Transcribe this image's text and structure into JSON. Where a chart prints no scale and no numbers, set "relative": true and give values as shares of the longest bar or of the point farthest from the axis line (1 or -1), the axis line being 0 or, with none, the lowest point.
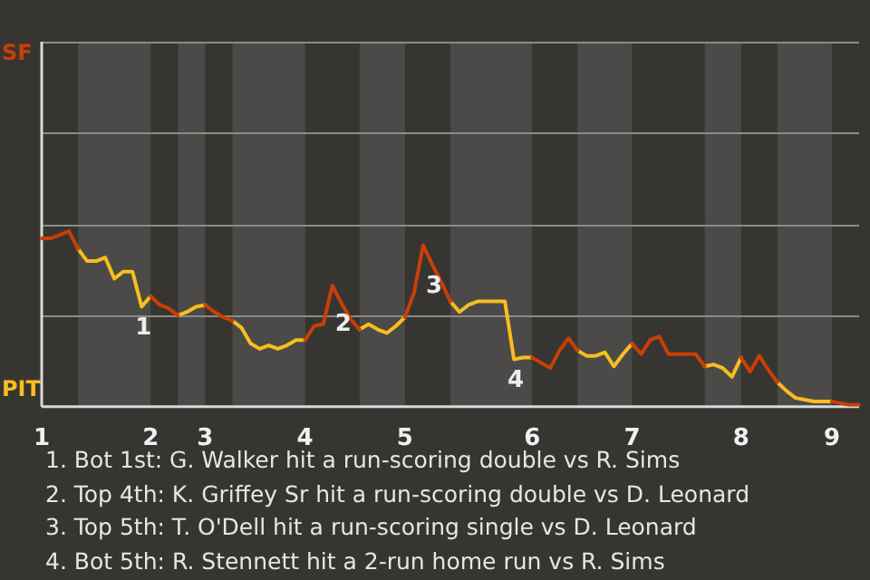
{
  "chart_data": {
    "type": "line",
    "relative": true,
    "categories": [
      "1",
      null,
      null,
      null,
      null,
      null,
      null,
      null,
      null,
      null,
      null,
      null,
      "2",
      null,
      null,
      null,
      null,
      null,
      "3",
      null,
      null,
      null,
      null,
      null,
      null,
      null,
      null,
      null,
      null,
      "4",
      null,
      null,
      null,
      null,
      null,
      null,
      null,
      null,
      null,
      null,
      "5",
      null,
      null,
      null,
      null,
      null,
      null,
      null,
      null,
      null,
      null,
      null,
      null,
      null,
      "6",
      null,
      null,
      null,
      null,
      null,
      null,
      null,
      null,
      null,
      null,
      "7",
      null,
      null,
      null,
      null,
      null,
      null,
      null,
      null,
      null,
      null,
      null,
      "8",
      null,
      null,
      null,
      null,
      null,
      null,
      null,
      null,
      null,
      "9",
      null,
      null,
      null
    ],
    "marker": "none",
    "line_style": "solid",
    "ref_lines": [
      {
        "axis": "y",
        "value": 0.52,
        "color": "#8d8b88"
      },
      {
        "axis": "y",
        "value": 1.04,
        "color": "#8d8b88"
      },
      {
        "axis": "y",
        "value": 1.56,
        "color": "#8d8b88"
      },
      {
        "axis": "y",
        "value": 2.08,
        "color": "#8d8b88"
      }
    ],
    "series": [
      {
        "color": "#c93f05",
        "values": [
          0.96,
          0.96,
          0.98,
          1,
          0.9,
          null,
          null,
          null,
          null,
          null,
          null,
          null,
          0.63,
          0.58,
          0.56,
          0.52,
          null,
          null,
          0.58,
          0.54,
          0.51,
          0.49,
          null,
          null,
          null,
          null,
          null,
          null,
          null,
          0.38,
          0.46,
          0.47,
          0.69,
          0.59,
          0.5,
          0.44,
          null,
          null,
          null,
          null,
          0.51,
          0.65,
          0.92,
          0.81,
          0.71,
          0.6,
          null,
          null,
          null,
          null,
          null,
          null,
          null,
          null,
          0.28,
          0.25,
          0.22,
          0.32,
          0.39,
          0.32,
          null,
          null,
          null,
          null,
          null,
          0.36,
          0.3,
          0.38,
          0.4,
          0.3,
          0.3,
          0.3,
          0.3,
          0.23,
          null,
          null,
          null,
          0.28,
          0.2,
          0.29,
          0.21,
          0.14,
          null,
          null,
          null,
          null,
          null,
          0.03,
          0.02,
          0.01,
          0.01
        ]
      },
      {
        "color": "#f7be1e",
        "values": [
          null,
          null,
          null,
          null,
          0.9,
          0.83,
          0.83,
          0.85,
          0.73,
          0.77,
          0.77,
          0.57,
          0.63,
          null,
          null,
          0.52,
          0.54,
          0.57,
          0.58,
          null,
          null,
          0.49,
          0.45,
          0.36,
          0.33,
          0.35,
          0.33,
          0.35,
          0.38,
          0.38,
          null,
          null,
          null,
          null,
          null,
          0.44,
          0.47,
          0.44,
          0.42,
          0.46,
          0.51,
          null,
          null,
          null,
          null,
          0.6,
          0.54,
          0.58,
          0.6,
          0.6,
          0.6,
          0.6,
          0.27,
          0.28,
          0.28,
          null,
          null,
          null,
          null,
          0.32,
          0.29,
          0.29,
          0.31,
          0.23,
          0.3,
          0.36,
          null,
          null,
          null,
          null,
          null,
          null,
          null,
          0.23,
          0.24,
          0.22,
          0.17,
          0.28,
          null,
          null,
          null,
          0.14,
          0.09,
          0.05,
          0.04,
          0.03,
          0.03,
          0.03,
          null,
          null,
          null
        ]
      }
    ],
    "annotations": [
      "SF",
      "PIT",
      {
        "text": "1",
        "y": 0.57
      },
      {
        "text": "2",
        "y": 0.59
      },
      {
        "text": "3",
        "y": 0.81
      },
      {
        "text": "4",
        "y": 0.27
      },
      "1. Bot 1st: G. Walker hit a run-scoring double vs R. Sims",
      "2. Top 4th: K. Griffey Sr hit a run-scoring double vs D. Leonard",
      "3. Top 5th: T. O'Dell hit a run-scoring single vs D. Leonard",
      "4. Bot 5th: R. Stennett hit a 2-run home run vs R. Sims"
    ]
  }
}
